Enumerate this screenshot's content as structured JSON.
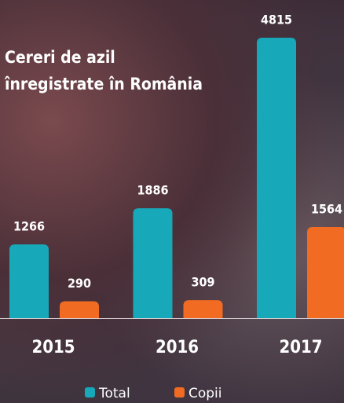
{
  "chart_data": {
    "type": "bar",
    "title": "Cereri de azil înregistrate în România",
    "categories": [
      "2015",
      "2016",
      "2017"
    ],
    "series": [
      {
        "name": "Total",
        "color": "#17a9b9",
        "values": [
          1266,
          1886,
          4815
        ]
      },
      {
        "name": "Copii",
        "color": "#f26b22",
        "values": [
          290,
          309,
          1564
        ]
      }
    ]
  }
}
